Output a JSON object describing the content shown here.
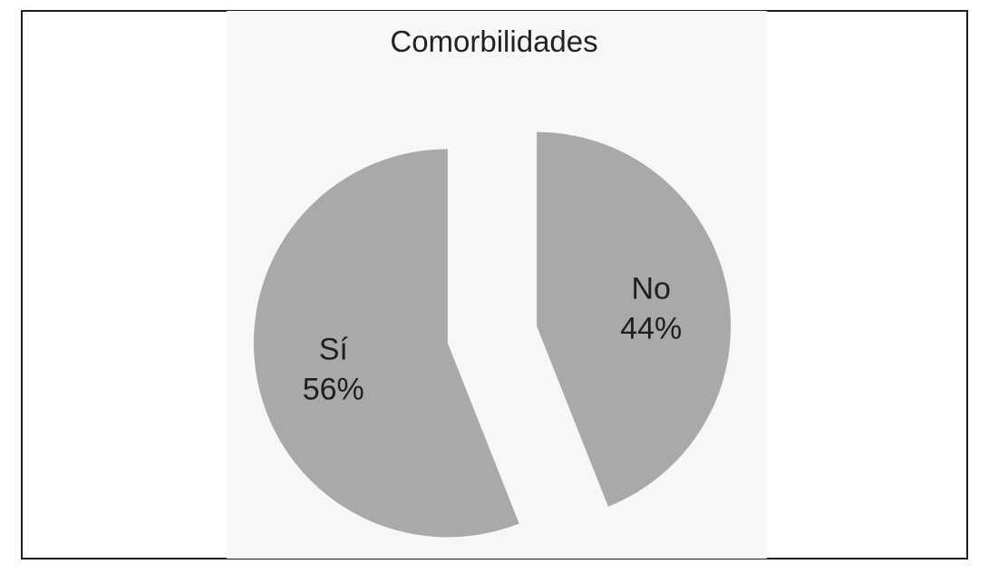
{
  "chart_data": {
    "type": "pie",
    "title": "Comorbilidades",
    "categories": [
      "Sí",
      "No"
    ],
    "values": [
      56,
      44
    ],
    "value_labels": [
      "56%",
      "44%"
    ],
    "unit": "%",
    "exploded": true,
    "colors": {
      "slice_fill": "#a8a9ab",
      "plot_background": "#f7f7f7",
      "frame_border": "#1e1e1e",
      "text": "#1f1f1f"
    }
  }
}
